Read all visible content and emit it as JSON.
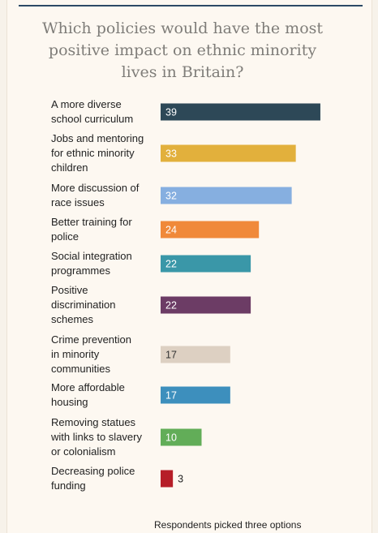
{
  "title": "Which policies would have the most positive impact on ethnic minority lives in Britain?",
  "footnote": "Respondents picked three options",
  "chart_data": {
    "type": "bar",
    "orientation": "horizontal",
    "title": "Which policies would have the most positive impact on ethnic minority lives in Britain?",
    "xlim": [
      0,
      40
    ],
    "grid": false,
    "legend": "none",
    "categories": [
      "A more diverse school curriculum",
      "Jobs and mentoring for ethnic minority children",
      "More discussion of race issues",
      "Better training for police",
      "Social integration programmes",
      "Positive discrimination schemes",
      "Crime prevention in minority communities",
      "More affordable housing",
      "Removing statues with links to slavery or colonialism",
      "Decreasing police funding"
    ],
    "label_lines": [
      [
        "A more diverse",
        "school curriculum"
      ],
      [
        "Jobs and mentoring",
        "for ethnic minority",
        "children"
      ],
      [
        "More discussion of",
        "race issues"
      ],
      [
        "Better training for",
        "police"
      ],
      [
        "Social integration",
        "programmes"
      ],
      [
        "Positive",
        "discrimination",
        "schemes"
      ],
      [
        "Crime prevention",
        "in minority",
        "communities"
      ],
      [
        "More affordable",
        "housing"
      ],
      [
        "Removing statues",
        "with links to slavery",
        "or colonialism"
      ],
      [
        "Decreasing police",
        "funding"
      ]
    ],
    "values": [
      39,
      33,
      32,
      24,
      22,
      22,
      17,
      17,
      10,
      3
    ],
    "colors": [
      "#2d4857",
      "#e2b03c",
      "#86afe0",
      "#f0893a",
      "#3a97a8",
      "#6c3c65",
      "#ddd0c2",
      "#3d8fbd",
      "#62ad58",
      "#b61e28"
    ],
    "value_label_colors": [
      "#ffffff",
      "#ffffff",
      "#ffffff",
      "#ffffff",
      "#ffffff",
      "#ffffff",
      "#333333",
      "#ffffff",
      "#ffffff",
      "#222222"
    ],
    "value_label_outside": [
      false,
      false,
      false,
      false,
      false,
      false,
      false,
      false,
      false,
      true
    ]
  }
}
